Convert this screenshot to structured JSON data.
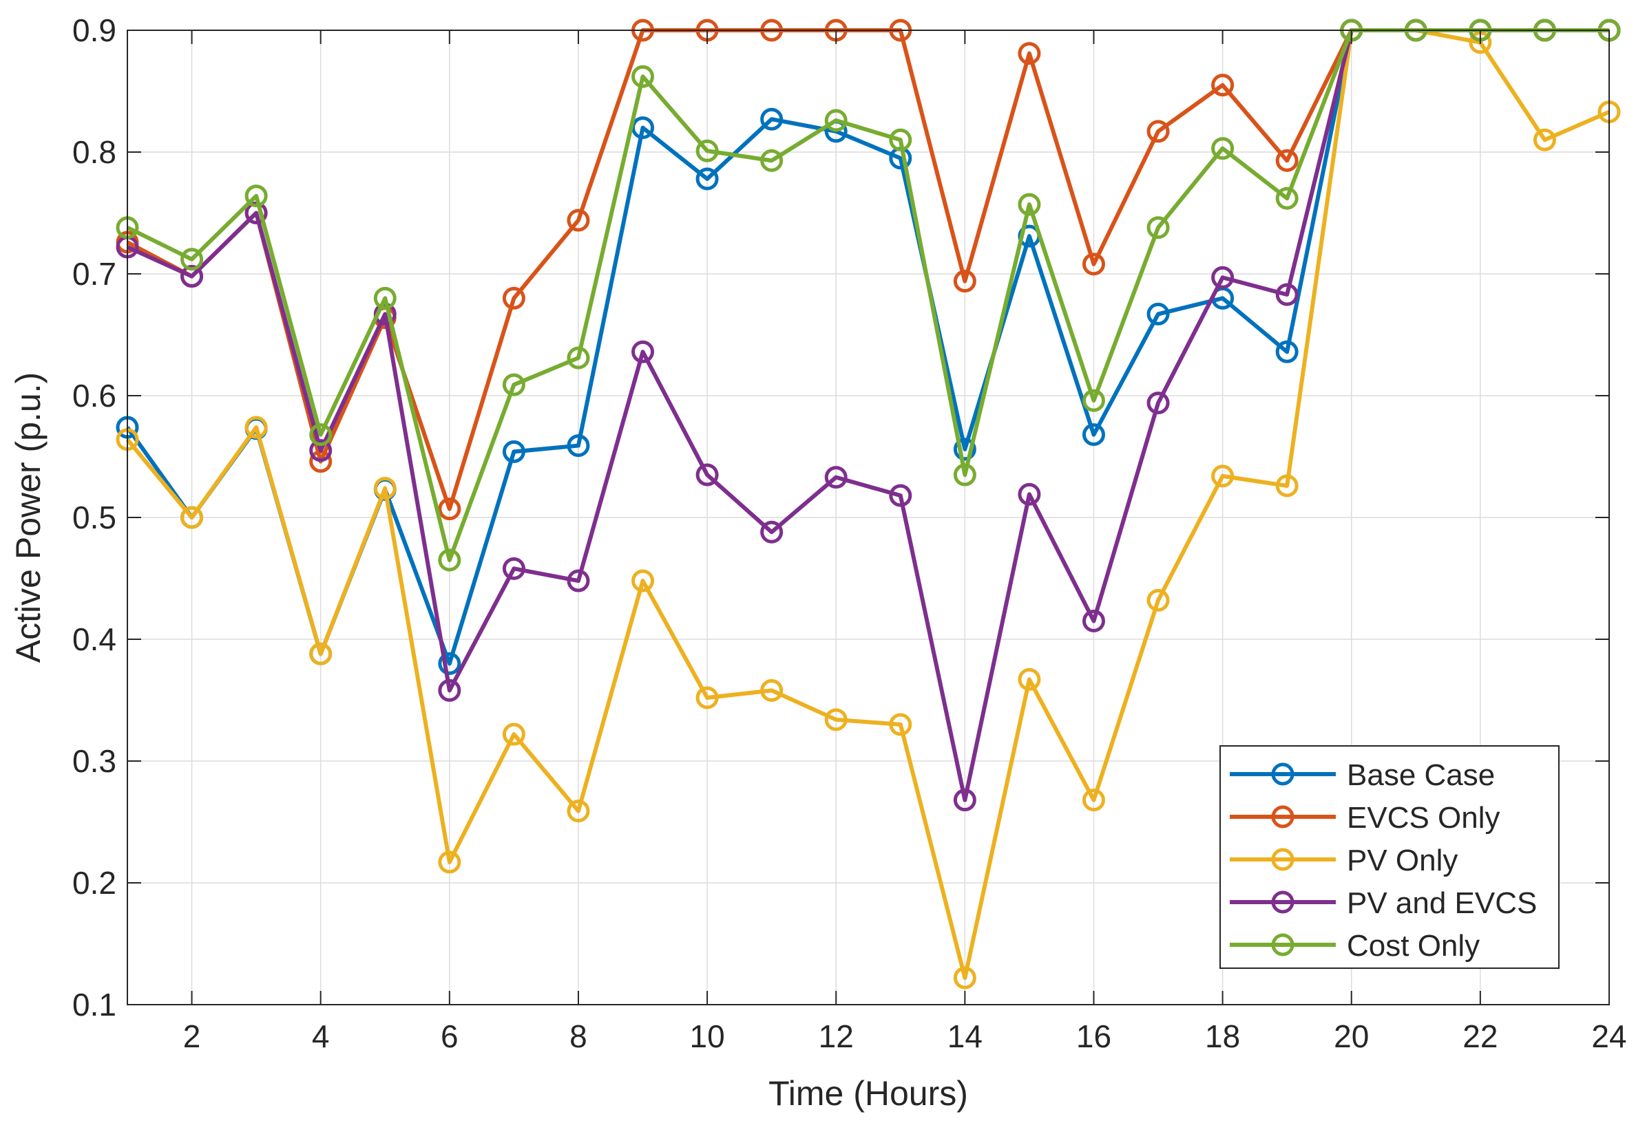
{
  "chart_data": {
    "type": "line",
    "title": "",
    "xlabel": "Time (Hours)",
    "ylabel": "Active Power (p.u.)",
    "xlim": [
      1,
      24
    ],
    "ylim": [
      0.1,
      0.9
    ],
    "xticks": [
      2,
      4,
      6,
      8,
      10,
      12,
      14,
      16,
      18,
      20,
      22,
      24
    ],
    "yticks": [
      0.1,
      0.2,
      0.3,
      0.4,
      0.5,
      0.6,
      0.7,
      0.8,
      0.9
    ],
    "grid": true,
    "legend_position": "bottom-right",
    "x": [
      1,
      2,
      3,
      4,
      5,
      6,
      7,
      8,
      9,
      10,
      11,
      12,
      13,
      14,
      15,
      16,
      17,
      18,
      19,
      20,
      21,
      22,
      23,
      24
    ],
    "series": [
      {
        "name": "Base Case",
        "color": "#0072BD",
        "values": [
          0.574,
          0.5,
          0.573,
          0.388,
          0.523,
          0.38,
          0.554,
          0.559,
          0.82,
          0.778,
          0.827,
          0.817,
          0.795,
          0.556,
          0.731,
          0.568,
          0.667,
          0.68,
          0.636,
          0.9,
          0.9,
          0.9,
          0.9,
          0.9
        ]
      },
      {
        "name": "EVCS Only",
        "color": "#D95319",
        "values": [
          0.726,
          0.698,
          0.75,
          0.546,
          0.664,
          0.507,
          0.68,
          0.744,
          0.9,
          0.9,
          0.9,
          0.9,
          0.9,
          0.694,
          0.881,
          0.708,
          0.817,
          0.855,
          0.793,
          0.9,
          0.9,
          0.9,
          0.9,
          0.9
        ]
      },
      {
        "name": "PV Only",
        "color": "#EDB120",
        "values": [
          0.564,
          0.5,
          0.574,
          0.388,
          0.524,
          0.217,
          0.322,
          0.259,
          0.448,
          0.352,
          0.358,
          0.334,
          0.33,
          0.122,
          0.367,
          0.268,
          0.432,
          0.534,
          0.526,
          0.9,
          0.9,
          0.89,
          0.81,
          0.833
        ]
      },
      {
        "name": "PV and EVCS",
        "color": "#7E2F8E",
        "values": [
          0.722,
          0.698,
          0.75,
          0.555,
          0.667,
          0.358,
          0.458,
          0.448,
          0.636,
          0.535,
          0.488,
          0.533,
          0.518,
          0.268,
          0.519,
          0.415,
          0.594,
          0.697,
          0.683,
          0.9,
          0.9,
          0.9,
          0.9,
          0.9
        ]
      },
      {
        "name": "Cost Only",
        "color": "#77AC30",
        "values": [
          0.738,
          0.712,
          0.764,
          0.568,
          0.68,
          0.465,
          0.609,
          0.631,
          0.862,
          0.801,
          0.793,
          0.826,
          0.81,
          0.535,
          0.757,
          0.596,
          0.738,
          0.803,
          0.762,
          0.9,
          0.9,
          0.9,
          0.9,
          0.9
        ]
      }
    ]
  }
}
